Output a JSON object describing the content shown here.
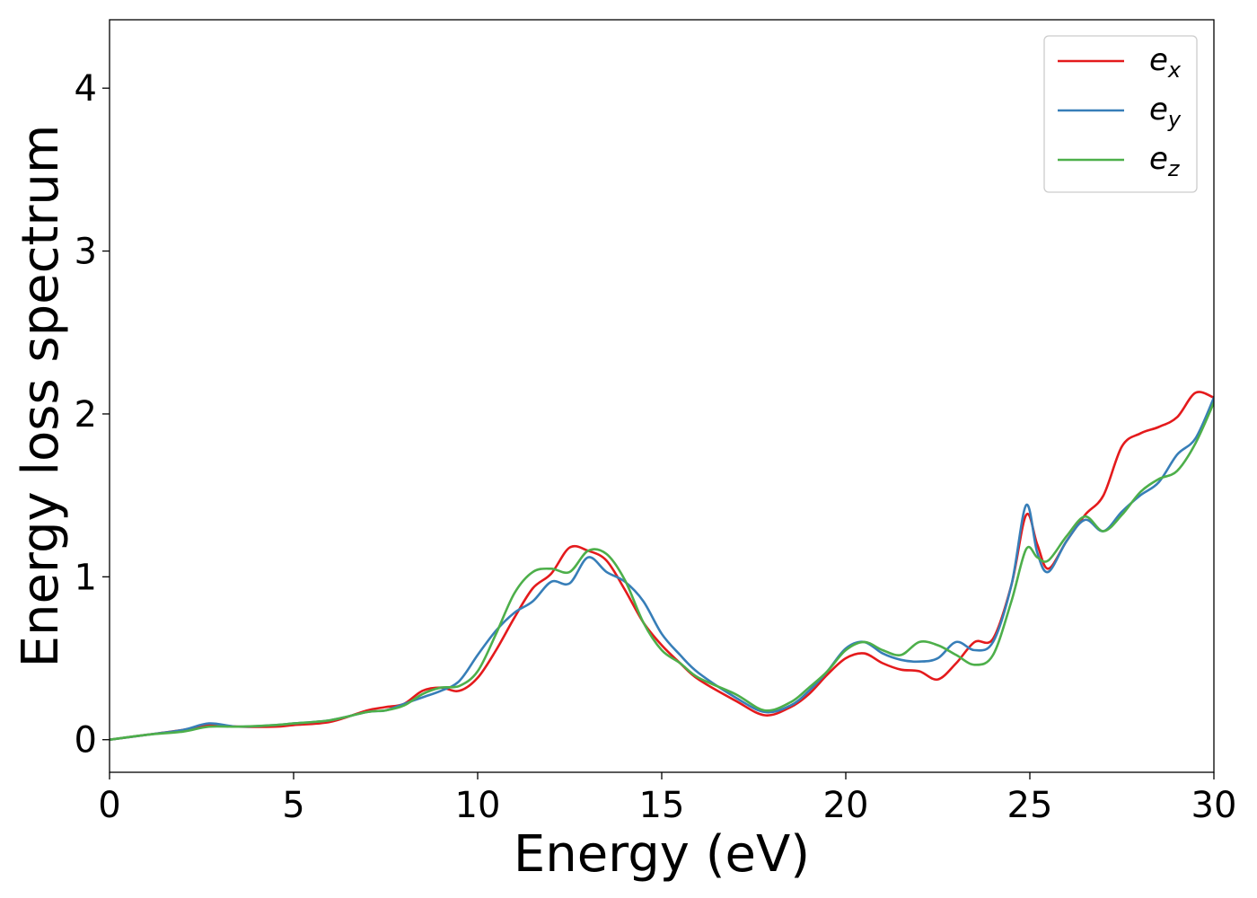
{
  "chart_data": {
    "type": "line",
    "xlabel": "Energy (eV)",
    "ylabel": "Energy loss spectrum",
    "xlim": [
      0,
      30
    ],
    "ylim": [
      -0.2,
      4.42
    ],
    "xticks": [
      0,
      5,
      10,
      15,
      20,
      25,
      30
    ],
    "yticks": [
      0,
      1,
      2,
      3,
      4
    ],
    "grid": false,
    "legend": "top-right",
    "series": [
      {
        "name": "e",
        "sub": "x",
        "color": "#e41a1c",
        "x": [
          0,
          1,
          2,
          2.7,
          3.5,
          4.5,
          5,
          6,
          7,
          7.5,
          8,
          8.5,
          9,
          9.5,
          10,
          10.5,
          11,
          11.5,
          12,
          12.5,
          13,
          13.5,
          14,
          14.5,
          15,
          15.5,
          16,
          17,
          17.8,
          18.5,
          19,
          19.5,
          20,
          20.5,
          21,
          21.5,
          22,
          22.5,
          23,
          23.5,
          24,
          24.5,
          24.9,
          25.2,
          25.5,
          26,
          26.5,
          27,
          27.5,
          28,
          28.5,
          29,
          29.5,
          30
        ],
        "y": [
          0,
          0.03,
          0.06,
          0.09,
          0.08,
          0.08,
          0.09,
          0.11,
          0.18,
          0.2,
          0.22,
          0.3,
          0.32,
          0.3,
          0.38,
          0.55,
          0.75,
          0.93,
          1.02,
          1.18,
          1.16,
          1.1,
          0.92,
          0.72,
          0.58,
          0.47,
          0.37,
          0.24,
          0.15,
          0.2,
          0.28,
          0.4,
          0.5,
          0.53,
          0.47,
          0.43,
          0.42,
          0.37,
          0.47,
          0.6,
          0.62,
          0.95,
          1.38,
          1.2,
          1.05,
          1.22,
          1.38,
          1.5,
          1.8,
          1.88,
          1.92,
          1.98,
          2.13,
          2.1
        ]
      },
      {
        "name": "e",
        "sub": "y",
        "color": "#377eb8",
        "x": [
          0,
          1,
          2,
          2.7,
          3.5,
          4.5,
          5,
          6,
          7,
          7.5,
          8,
          8.5,
          9,
          9.5,
          10,
          10.5,
          11,
          11.5,
          12,
          12.5,
          13,
          13.5,
          14,
          14.5,
          15,
          15.5,
          16,
          17,
          17.8,
          18.5,
          19,
          19.5,
          20,
          20.5,
          21,
          21.5,
          22,
          22.5,
          23,
          23.5,
          24,
          24.5,
          24.9,
          25.2,
          25.5,
          26,
          26.5,
          27,
          27.5,
          28,
          28.5,
          29,
          29.5,
          30
        ],
        "y": [
          0,
          0.03,
          0.06,
          0.1,
          0.08,
          0.09,
          0.1,
          0.12,
          0.17,
          0.18,
          0.22,
          0.26,
          0.3,
          0.36,
          0.52,
          0.67,
          0.78,
          0.85,
          0.97,
          0.96,
          1.12,
          1.03,
          0.97,
          0.85,
          0.65,
          0.52,
          0.41,
          0.26,
          0.17,
          0.21,
          0.3,
          0.42,
          0.56,
          0.6,
          0.53,
          0.49,
          0.48,
          0.5,
          0.6,
          0.55,
          0.6,
          0.95,
          1.44,
          1.15,
          1.03,
          1.22,
          1.35,
          1.28,
          1.4,
          1.5,
          1.58,
          1.75,
          1.85,
          2.1
        ]
      },
      {
        "name": "e",
        "sub": "z",
        "color": "#4daf4a",
        "x": [
          0,
          1,
          2,
          2.7,
          3.5,
          4.5,
          5,
          6,
          7,
          7.5,
          8,
          8.5,
          9,
          9.5,
          10,
          10.5,
          11,
          11.5,
          12,
          12.5,
          13,
          13.5,
          14,
          14.5,
          15,
          15.5,
          16,
          17,
          17.8,
          18.5,
          19,
          19.5,
          20,
          20.5,
          21,
          21.5,
          22,
          22.5,
          23,
          23.5,
          24,
          24.5,
          24.9,
          25.2,
          25.5,
          26,
          26.5,
          27,
          27.5,
          28,
          28.5,
          29,
          29.5,
          30
        ],
        "y": [
          0,
          0.03,
          0.05,
          0.08,
          0.08,
          0.09,
          0.1,
          0.12,
          0.17,
          0.18,
          0.21,
          0.28,
          0.32,
          0.33,
          0.42,
          0.65,
          0.9,
          1.03,
          1.05,
          1.03,
          1.16,
          1.14,
          0.98,
          0.72,
          0.55,
          0.47,
          0.38,
          0.28,
          0.18,
          0.23,
          0.32,
          0.42,
          0.55,
          0.6,
          0.55,
          0.52,
          0.6,
          0.58,
          0.52,
          0.46,
          0.52,
          0.85,
          1.17,
          1.12,
          1.1,
          1.25,
          1.37,
          1.28,
          1.38,
          1.52,
          1.6,
          1.65,
          1.82,
          2.07
        ]
      }
    ]
  }
}
